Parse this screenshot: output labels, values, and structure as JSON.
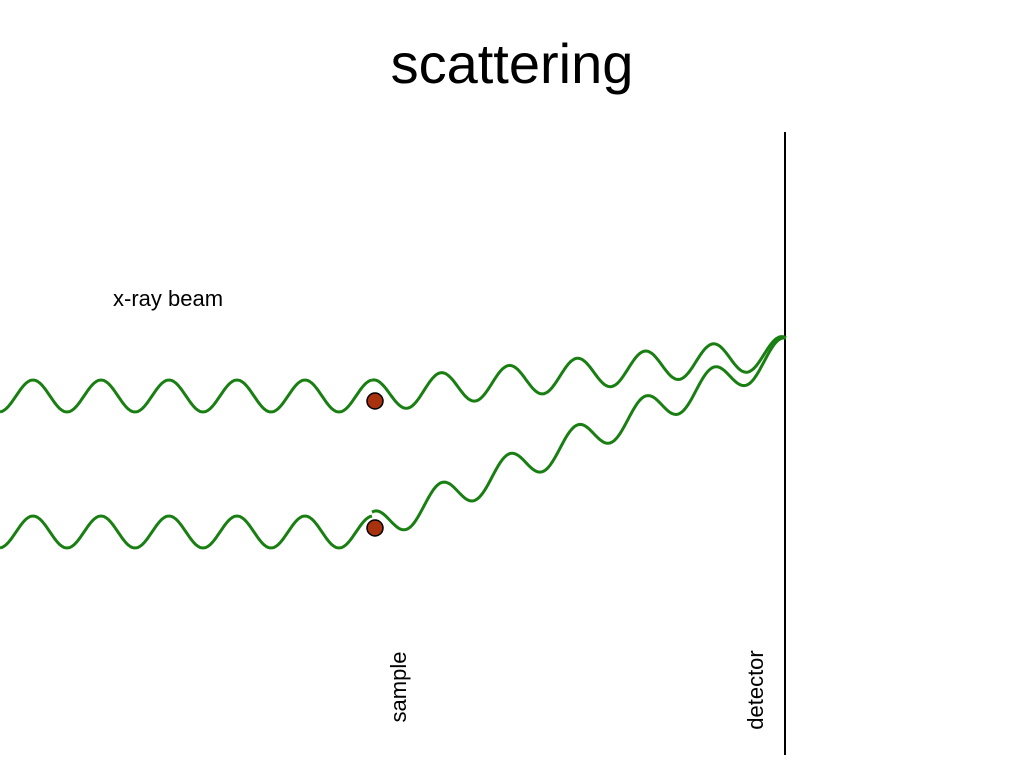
{
  "title": "scattering",
  "beam_label": "x-ray beam",
  "sample_label": "sample",
  "detector_label": "detector"
}
